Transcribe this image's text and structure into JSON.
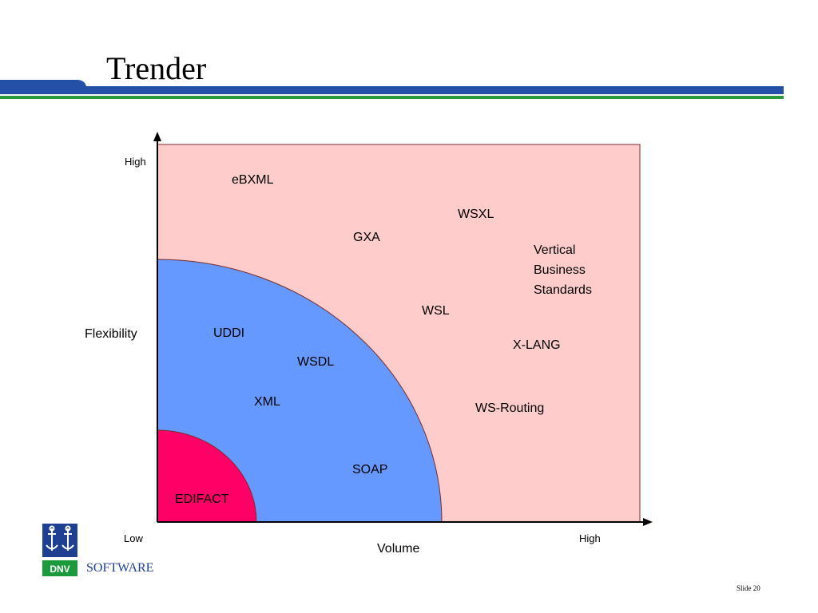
{
  "slide": {
    "title": "Trender",
    "slide_number": "Slide 20",
    "logo": {
      "mark_text": "DNV",
      "name": "SOFTWARE",
      "icon": "anchor-icon"
    },
    "colors": {
      "header_blue": "#2450a8",
      "header_green": "#2a9a3c",
      "outer_region": "#ffcccc",
      "middle_region": "#6699ff",
      "inner_region": "#ff0066",
      "logo_blue": "#1f3f93",
      "logo_green": "#1a9a3a"
    }
  },
  "diagram": {
    "y_axis": {
      "label": "Flexibility",
      "high": "High"
    },
    "x_axis": {
      "label": "Volume",
      "low": "Low",
      "high": "High"
    },
    "regions": [
      {
        "name": "outer",
        "color": "#ffcccc"
      },
      {
        "name": "middle",
        "color": "#6699ff"
      },
      {
        "name": "inner",
        "color": "#ff0066"
      }
    ],
    "items": {
      "ebxml": "eBXML",
      "wsxl": "WSXL",
      "gxa": "GXA",
      "vertical": [
        "Vertical",
        "Business",
        "Standards"
      ],
      "wsl": "WSL",
      "x_lang": "X-LANG",
      "uddi": "UDDI",
      "wsdl": "WSDL",
      "xml": "XML",
      "ws_routing": "WS-Routing",
      "soap": "SOAP",
      "edifact": "EDIFACT"
    }
  }
}
